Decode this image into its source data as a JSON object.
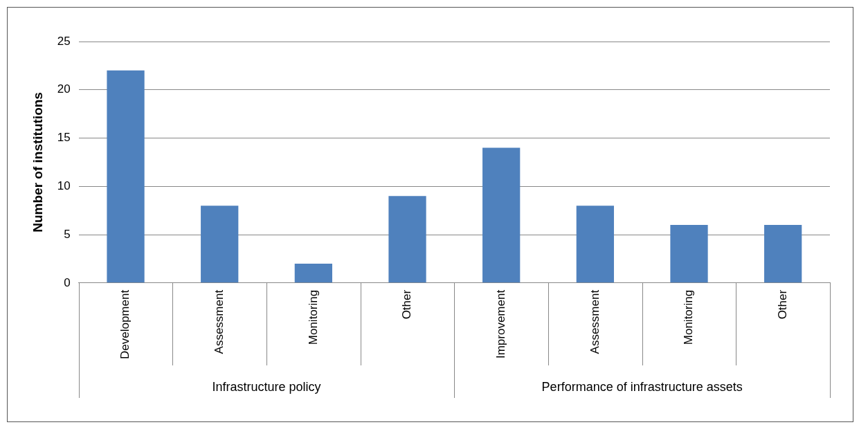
{
  "chart_data": {
    "type": "bar",
    "ylabel": "Number of institutions",
    "categories": [
      "Development",
      "Assessment",
      "Monitoring",
      "Other",
      "Improvement",
      "Assessment",
      "Monitoring",
      "Other"
    ],
    "values": [
      22,
      8,
      2,
      9,
      14,
      8,
      6,
      6
    ],
    "color": "#4f81bd",
    "ylim": [
      0,
      25
    ],
    "yticks": [
      0,
      5,
      10,
      15,
      20,
      25
    ],
    "grid": "y",
    "legend": false,
    "annotations": [
      "Infrastructure policy",
      "Performance of infrastructure assets"
    ]
  }
}
